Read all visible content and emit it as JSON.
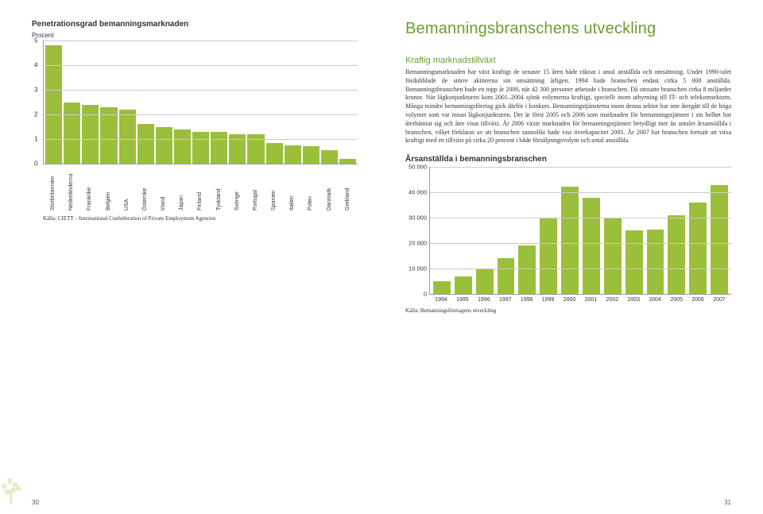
{
  "page": {
    "title_color": "#6b9e2f",
    "title": "Bemanningsbranschens utveckling",
    "left_pagenum": "30",
    "right_pagenum": "31"
  },
  "chart1": {
    "type": "bar",
    "title": "Penetrationsgrad bemanningsmarknaden",
    "subtitle": "Procent",
    "bar_color": "#9bbf3b",
    "grid_color": "#cccccc",
    "axis_color": "#999999",
    "ymax": 5,
    "ytick_step": 1,
    "categories": [
      "Storbritannien",
      "Nederländerna",
      "Frankrike",
      "Belgien",
      "USA",
      "Österrike",
      "Irland",
      "Japan",
      "Finland",
      "Tyskland",
      "Sverige",
      "Portugal",
      "Spanien",
      "Italien",
      "Polen",
      "Danmark",
      "Grekland"
    ],
    "values": [
      4.8,
      2.5,
      2.4,
      2.3,
      2.2,
      1.6,
      1.5,
      1.4,
      1.3,
      1.3,
      1.2,
      1.2,
      0.85,
      0.75,
      0.7,
      0.55,
      0.2
    ],
    "source": "Källa: CIETT – International Confederation of Private Employment Agencies"
  },
  "text": {
    "subhead": "Kraftig marknadstillväxt",
    "subhead_color": "#6b9e2f",
    "body": "Bemanningsmarknaden har växt kraftigt de senaste 15 åren både räknat i antal anställda och omsättning. Under 1990-talet fördubblade de större aktörerna sin omsättning årligen. 1994 hade branschen endast cirka 5 000 anställda. Bemanningsbranschen hade en topp år 2000, när 42 300 personer arbetade i branschen. Då omsatte branschen cirka 8 miljarder kronor. När lågkonjunkturen kom 2001–2004 sjönk volymerna kraftigt, speciellt inom uthyrning till IT- och telekomsektorn. Många mindre bemanningsföretag gick därför i konkurs. Bemanningstjänsterna inom denna sektor har inte återgått till de höga volymer som var innan lågkonjunkturen. Det är först 2005 och 2006 som marknaden för bemanningstjänster i sin helhet har återhämtat sig och åter visat tillväxt. År 2006 växte marknaden för bemanningstjänster betydligt mer än antalet årsanställda i branschen, vilket förklaras av att branschen sannolikt hade viss överkapacitet 2005. År 2007 har branschen fortsatt att växa kraftigt med en tillväxt på cirka 20 procent i både försäljningsvolym och antal anställda."
  },
  "chart2": {
    "type": "bar",
    "title": "Årsanställda i bemanningsbranschen",
    "bar_color": "#9bbf3b",
    "grid_color": "#cccccc",
    "axis_color": "#999999",
    "ymax": 50000,
    "ytick_step": 10000,
    "years": [
      "1994",
      "1995",
      "1996",
      "1997",
      "1998",
      "1999",
      "2000",
      "2001",
      "2002",
      "2003",
      "2004",
      "2005",
      "2006",
      "2007"
    ],
    "values": [
      5000,
      7000,
      10000,
      14000,
      19000,
      30000,
      42300,
      38000,
      30000,
      25000,
      25500,
      31000,
      36000,
      43000
    ],
    "source": "Källa: Bemanningsföretagens utveckling"
  }
}
